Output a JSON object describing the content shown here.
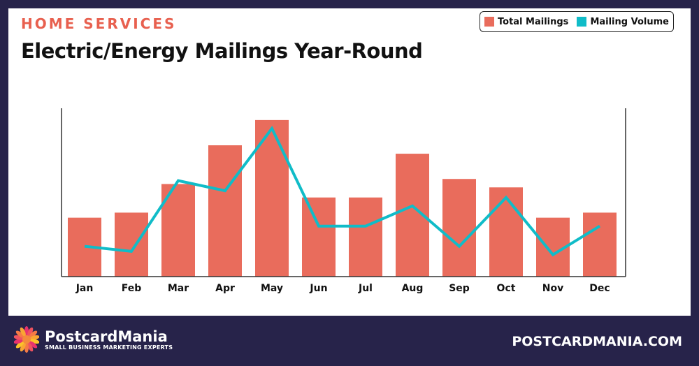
{
  "header": {
    "kicker": "HOME SERVICES",
    "title": "Electric/Energy Mailings Year-Round"
  },
  "legend": [
    {
      "label": "Total Mailings",
      "color": "#e96c5c"
    },
    {
      "label": "Mailing Volume",
      "color": "#10bcc8"
    }
  ],
  "chart_data": {
    "type": "bar",
    "title": "Electric/Energy Mailings Year-Round",
    "categories": [
      "Jan",
      "Feb",
      "Mar",
      "Apr",
      "May",
      "Jun",
      "Jul",
      "Aug",
      "Sep",
      "Oct",
      "Nov",
      "Dec"
    ],
    "series": [
      {
        "name": "Total Mailings",
        "type": "bar",
        "color": "#e96c5c",
        "values": [
          35,
          38,
          55,
          78,
          93,
          47,
          47,
          73,
          58,
          53,
          35,
          38
        ]
      },
      {
        "name": "Mailing Volume",
        "type": "line",
        "color": "#10bcc8",
        "values": [
          18,
          15,
          57,
          51,
          88,
          30,
          30,
          42,
          18,
          47,
          13,
          30
        ]
      }
    ],
    "ylim": [
      0,
      100
    ],
    "y_axis_labels_shown": false,
    "grid": false,
    "legend_position": "top-right",
    "xlabel": "",
    "ylabel": ""
  },
  "footer": {
    "brand": "PostcardMania",
    "tagline": "SMALL BUSINESS MARKETING EXPERTS",
    "website": "POSTCARDMANIA.COM"
  }
}
